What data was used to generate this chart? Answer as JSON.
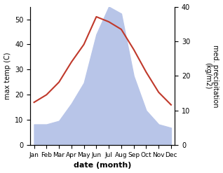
{
  "months": [
    "Jan",
    "Feb",
    "Mar",
    "Apr",
    "May",
    "Jun",
    "Jul",
    "Aug",
    "Sep",
    "Oct",
    "Nov",
    "Dec"
  ],
  "month_indices": [
    0,
    1,
    2,
    3,
    4,
    5,
    6,
    7,
    8,
    9,
    10,
    11
  ],
  "temperature": [
    17,
    20,
    25,
    33,
    40,
    51,
    49,
    46,
    38,
    29,
    21,
    16
  ],
  "precipitation": [
    6,
    6,
    7,
    12,
    18,
    32,
    40,
    38,
    20,
    10,
    6,
    5
  ],
  "temp_color": "#c0392b",
  "precip_fill_color": "#b8c5e8",
  "temp_ylim": [
    0,
    55
  ],
  "precip_ylim": [
    0,
    40
  ],
  "temp_yticks": [
    0,
    10,
    20,
    30,
    40,
    50
  ],
  "precip_yticks": [
    0,
    10,
    20,
    30,
    40
  ],
  "ylabel_left": "max temp (C)",
  "ylabel_right": "med. precipitation\n(kg/m2)",
  "xlabel": "date (month)",
  "background_color": "#ffffff"
}
